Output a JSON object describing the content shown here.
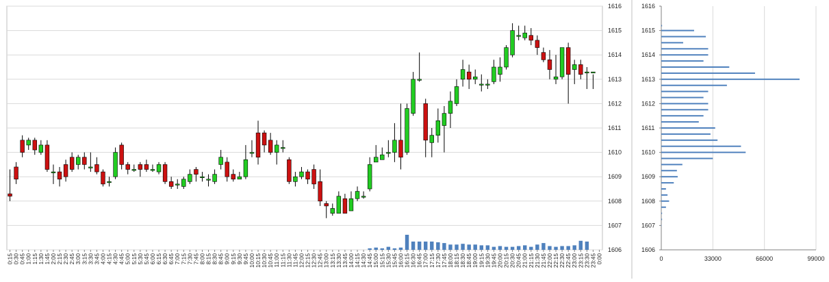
{
  "chart_data": [
    {
      "type": "candlestick",
      "title": "",
      "ylim": [
        1606,
        1616
      ],
      "y_ticks": [
        "1606",
        "1607",
        "1608",
        "1609",
        "1610",
        "1611",
        "1612",
        "1613",
        "1614",
        "1615",
        "1616"
      ],
      "grid": true,
      "colors": {
        "up": "#22cc22",
        "down": "#cc1111",
        "wick": "#000000",
        "volume": "#4f81bd",
        "grid": "#d9d9d9"
      },
      "x": [
        "0:15",
        "0:30",
        "0:45",
        "1:00",
        "1:15",
        "1:30",
        "1:45",
        "2:00",
        "2:15",
        "2:30",
        "2:45",
        "3:00",
        "3:15",
        "3:30",
        "3:45",
        "4:00",
        "4:15",
        "4:30",
        "4:45",
        "5:00",
        "5:15",
        "5:30",
        "5:45",
        "6:00",
        "6:15",
        "6:30",
        "6:45",
        "7:00",
        "7:15",
        "7:30",
        "7:45",
        "8:00",
        "8:15",
        "8:30",
        "8:45",
        "9:00",
        "9:15",
        "9:30",
        "9:45",
        "10:00",
        "10:15",
        "10:30",
        "10:45",
        "11:00",
        "11:15",
        "11:30",
        "11:45",
        "12:00",
        "12:15",
        "12:30",
        "12:45",
        "13:00",
        "13:15",
        "13:30",
        "13:45",
        "14:00",
        "14:15",
        "14:30",
        "14:45",
        "15:00",
        "15:15",
        "15:30",
        "15:45",
        "16:00",
        "16:15",
        "16:30",
        "16:45",
        "17:00",
        "17:15",
        "17:30",
        "17:45",
        "18:00",
        "18:15",
        "18:30",
        "18:45",
        "19:00",
        "19:15",
        "19:30",
        "19:45",
        "20:00",
        "20:15",
        "20:30",
        "20:45",
        "21:00",
        "21:15",
        "21:30",
        "21:45",
        "22:00",
        "22:15",
        "22:30",
        "22:45",
        "23:00",
        "23:15",
        "23:30",
        "23:45",
        "0:00"
      ],
      "candles": [
        [
          1608.3,
          1608.2,
          1609.3,
          1608.0
        ],
        [
          1609.4,
          1608.9,
          1609.6,
          1608.7
        ],
        [
          1610.5,
          1610.0,
          1610.7,
          1609.8
        ],
        [
          1610.3,
          1610.5,
          1610.6,
          1610.1
        ],
        [
          1610.5,
          1610.1,
          1610.6,
          1609.9
        ],
        [
          1610.0,
          1610.3,
          1610.5,
          1609.9
        ],
        [
          1610.3,
          1609.3,
          1610.5,
          1609.2
        ],
        [
          1609.2,
          1609.2,
          1609.5,
          1608.7
        ],
        [
          1609.2,
          1608.9,
          1609.4,
          1608.6
        ],
        [
          1609.5,
          1609.0,
          1609.7,
          1608.8
        ],
        [
          1609.8,
          1609.3,
          1610.0,
          1609.2
        ],
        [
          1609.5,
          1609.8,
          1609.9,
          1609.3
        ],
        [
          1609.8,
          1609.5,
          1610.0,
          1609.3
        ],
        [
          1609.4,
          1609.4,
          1610.0,
          1609.2
        ],
        [
          1609.5,
          1609.2,
          1609.8,
          1609.1
        ],
        [
          1609.2,
          1608.7,
          1609.3,
          1608.6
        ],
        [
          1608.8,
          1608.8,
          1609.0,
          1608.6
        ],
        [
          1609.0,
          1610.0,
          1610.2,
          1608.9
        ],
        [
          1610.3,
          1609.5,
          1610.4,
          1609.3
        ],
        [
          1609.5,
          1609.3,
          1609.6,
          1609.1
        ],
        [
          1609.3,
          1609.3,
          1609.5,
          1609.2
        ],
        [
          1609.5,
          1609.3,
          1609.6,
          1609.0
        ],
        [
          1609.5,
          1609.3,
          1609.7,
          1609.2
        ],
        [
          1609.3,
          1609.3,
          1609.5,
          1609.2
        ],
        [
          1609.2,
          1609.5,
          1609.6,
          1609.1
        ],
        [
          1609.5,
          1608.8,
          1609.6,
          1608.7
        ],
        [
          1608.8,
          1608.6,
          1609.0,
          1608.5
        ],
        [
          1608.7,
          1608.7,
          1608.9,
          1608.5
        ],
        [
          1608.6,
          1608.9,
          1609.0,
          1608.5
        ],
        [
          1608.8,
          1609.1,
          1609.3,
          1608.7
        ],
        [
          1609.3,
          1609.1,
          1609.4,
          1608.8
        ],
        [
          1609.0,
          1609.0,
          1609.2,
          1608.8
        ],
        [
          1608.9,
          1608.9,
          1609.1,
          1608.6
        ],
        [
          1608.8,
          1609.1,
          1609.3,
          1608.7
        ],
        [
          1609.5,
          1609.8,
          1610.1,
          1609.3
        ],
        [
          1609.6,
          1609.0,
          1609.8,
          1608.8
        ],
        [
          1609.1,
          1608.9,
          1609.3,
          1608.8
        ],
        [
          1608.9,
          1609.0,
          1609.2,
          1608.9
        ],
        [
          1609.0,
          1609.7,
          1610.3,
          1608.9
        ],
        [
          1610.0,
          1610.0,
          1610.5,
          1609.8
        ],
        [
          1610.8,
          1609.8,
          1611.3,
          1609.5
        ],
        [
          1610.8,
          1610.3,
          1610.9,
          1610.0
        ],
        [
          1610.5,
          1610.0,
          1610.8,
          1609.9
        ],
        [
          1610.0,
          1610.3,
          1610.5,
          1609.5
        ],
        [
          1610.2,
          1610.2,
          1610.5,
          1610.0
        ],
        [
          1609.7,
          1608.8,
          1609.8,
          1608.7
        ],
        [
          1608.8,
          1609.0,
          1609.2,
          1608.6
        ],
        [
          1609.0,
          1609.2,
          1609.4,
          1608.9
        ],
        [
          1609.2,
          1608.9,
          1609.3,
          1608.7
        ],
        [
          1609.3,
          1608.7,
          1609.5,
          1608.5
        ],
        [
          1608.8,
          1608.0,
          1609.3,
          1607.8
        ],
        [
          1607.9,
          1607.8,
          1608.0,
          1607.3
        ],
        [
          1607.5,
          1607.7,
          1607.9,
          1607.4
        ],
        [
          1607.5,
          1608.2,
          1608.4,
          1607.5
        ],
        [
          1608.1,
          1607.5,
          1608.3,
          1607.5
        ],
        [
          1607.6,
          1608.1,
          1608.4,
          1607.6
        ],
        [
          1608.1,
          1608.4,
          1608.6,
          1608.0
        ],
        [
          1608.2,
          1608.2,
          1608.4,
          1608.1
        ],
        [
          1608.5,
          1609.5,
          1609.8,
          1608.4
        ],
        [
          1609.6,
          1609.8,
          1610.3,
          1609.6
        ],
        [
          1609.7,
          1609.9,
          1610.2,
          1609.7
        ],
        [
          1610.0,
          1610.0,
          1610.5,
          1609.8
        ],
        [
          1610.0,
          1610.5,
          1611.2,
          1609.6
        ],
        [
          1610.5,
          1609.8,
          1612.0,
          1609.3
        ],
        [
          1610.0,
          1611.8,
          1612.0,
          1609.9
        ],
        [
          1611.6,
          1613.0,
          1613.3,
          1611.5
        ],
        [
          1613.0,
          1613.0,
          1614.1,
          1612.9
        ],
        [
          1612.0,
          1610.5,
          1612.2,
          1609.8
        ],
        [
          1610.4,
          1610.7,
          1611.0,
          1609.8
        ],
        [
          1610.7,
          1611.3,
          1611.8,
          1610.4
        ],
        [
          1611.1,
          1611.6,
          1611.9,
          1610.0
        ],
        [
          1611.6,
          1612.1,
          1612.5,
          1611.0
        ],
        [
          1612.0,
          1612.7,
          1613.0,
          1611.9
        ],
        [
          1613.0,
          1613.4,
          1613.8,
          1612.7
        ],
        [
          1613.3,
          1613.0,
          1613.6,
          1612.6
        ],
        [
          1613.0,
          1613.1,
          1613.4,
          1612.8
        ],
        [
          1612.8,
          1612.8,
          1613.2,
          1612.5
        ],
        [
          1612.8,
          1612.8,
          1613.0,
          1612.6
        ],
        [
          1612.9,
          1613.5,
          1613.8,
          1612.8
        ],
        [
          1613.2,
          1613.5,
          1613.9,
          1612.9
        ],
        [
          1613.5,
          1614.3,
          1614.4,
          1613.4
        ],
        [
          1614.0,
          1615.0,
          1615.3,
          1613.9
        ],
        [
          1614.8,
          1614.8,
          1615.2,
          1614.6
        ],
        [
          1614.7,
          1614.9,
          1615.2,
          1614.6
        ],
        [
          1614.8,
          1614.6,
          1615.1,
          1614.4
        ],
        [
          1614.6,
          1614.3,
          1614.8,
          1614.0
        ],
        [
          1614.1,
          1613.8,
          1614.3,
          1613.7
        ],
        [
          1613.8,
          1613.4,
          1614.2,
          1613.0
        ],
        [
          1613.0,
          1613.1,
          1614.0,
          1612.8
        ],
        [
          1613.1,
          1614.3,
          1614.3,
          1613.0
        ],
        [
          1614.3,
          1613.2,
          1614.5,
          1612.0
        ],
        [
          1613.4,
          1613.6,
          1613.8,
          1612.8
        ],
        [
          1613.6,
          1613.2,
          1613.8,
          1613.0
        ],
        [
          1613.3,
          1613.3,
          1613.5,
          1612.6
        ],
        [
          1613.3,
          1613.3,
          1613.2,
          1612.6
        ]
      ],
      "volume": [
        0,
        0,
        0,
        0,
        0,
        0,
        0,
        0,
        0,
        0,
        0,
        0,
        0,
        0,
        0,
        0,
        0,
        0,
        0,
        0,
        0,
        0,
        0,
        0,
        0,
        0,
        0,
        0,
        0,
        0,
        0,
        0,
        0,
        0,
        0,
        0,
        0,
        0,
        0,
        0,
        0,
        0,
        0,
        0,
        0,
        0,
        0,
        0,
        0,
        0,
        0,
        0,
        0,
        0,
        0,
        0,
        0,
        0,
        0.1,
        0.15,
        0.1,
        0.2,
        0.1,
        0.15,
        1.0,
        0.55,
        0.55,
        0.55,
        0.55,
        0.5,
        0.45,
        0.35,
        0.35,
        0.4,
        0.35,
        0.35,
        0.3,
        0.3,
        0.2,
        0.25,
        0.2,
        0.2,
        0.25,
        0.3,
        0.2,
        0.35,
        0.45,
        0.25,
        0.2,
        0.25,
        0.25,
        0.3,
        0.6,
        0.55,
        0,
        0
      ]
    },
    {
      "type": "bar",
      "orientation": "horizontal",
      "title": "",
      "ylim": [
        1606,
        1616
      ],
      "y_ticks": [
        "1606",
        "1607",
        "1608",
        "1609",
        "1610",
        "1611",
        "1612",
        "1613",
        "1614",
        "1615",
        "1616"
      ],
      "x_ticks": [
        "0",
        "33000",
        "66000",
        "99000"
      ],
      "xlim": [
        0,
        99000
      ],
      "grid": true,
      "color": "#4f81bd",
      "categories": [
        1615.2,
        1615.0,
        1614.75,
        1614.5,
        1614.25,
        1614.0,
        1613.75,
        1613.5,
        1613.25,
        1613.0,
        1612.75,
        1612.5,
        1612.25,
        1612.0,
        1611.75,
        1611.5,
        1611.25,
        1611.0,
        1610.75,
        1610.5,
        1610.25,
        1610.0,
        1609.75,
        1609.5,
        1609.25,
        1609.0,
        1608.75,
        1608.5,
        1608.25,
        1608.0,
        1607.75,
        1607.5,
        1607.25,
        1607.0
      ],
      "values": [
        500,
        21000,
        28500,
        14000,
        30000,
        30000,
        27000,
        43500,
        60000,
        88500,
        42000,
        30000,
        27000,
        30000,
        30000,
        27000,
        24000,
        34500,
        31500,
        36000,
        51000,
        54000,
        33000,
        13500,
        10000,
        10500,
        8000,
        3000,
        4000,
        5000,
        3000,
        500,
        500,
        100
      ]
    }
  ]
}
